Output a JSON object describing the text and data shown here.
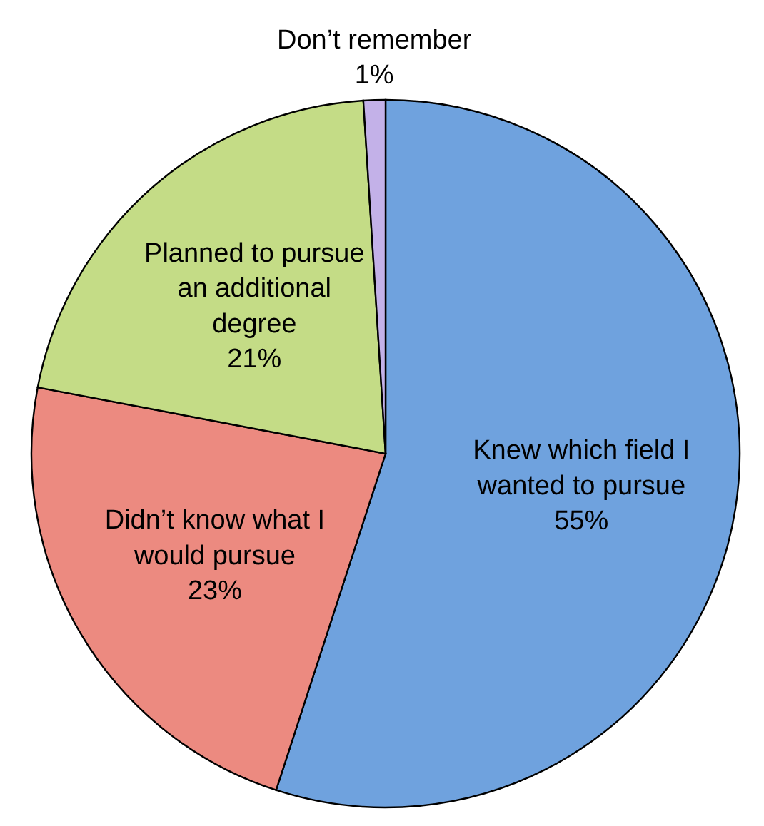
{
  "chart_data": {
    "type": "pie",
    "categories": [
      "Knew which field I wanted to pursue",
      "Didn’t know what I would pursue",
      "Planned to pursue an additional degree",
      "Don’t remember"
    ],
    "values": [
      55,
      23,
      21,
      1
    ],
    "value_labels": [
      "55%",
      "23%",
      "21%",
      "1%"
    ],
    "colors": [
      "#6fa2de",
      "#ec8a80",
      "#c4dc86",
      "#c3b1e8"
    ]
  }
}
